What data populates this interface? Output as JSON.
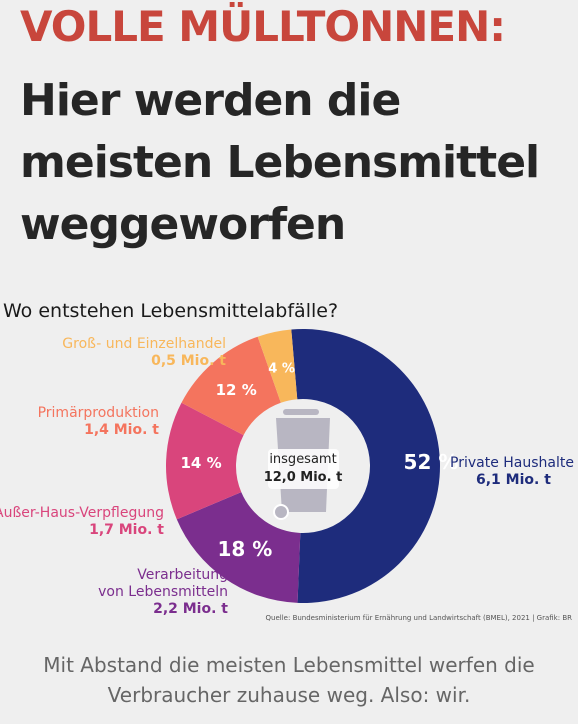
{
  "headline": "VOLLE MÜLLTONNEN:",
  "title_lines": [
    "Hier werden die",
    "meisten Lebensmittel",
    "weggeworfen"
  ],
  "chart_data": {
    "type": "pie",
    "title": "Wo entstehen Lebensmittelabfälle?",
    "center_label": "insgesamt",
    "center_value": "12,0 Mio. t",
    "total": 12.0,
    "unit": "Mio. t",
    "slices": [
      {
        "name_lines": [
          "Private Haushalte"
        ],
        "value": 6.1,
        "value_label": "6,1 Mio. t",
        "percent": 52,
        "percent_label": "52 %",
        "color": "#1e2c7c"
      },
      {
        "name_lines": [
          "Verarbeitung",
          "von Lebensmitteln"
        ],
        "value": 2.2,
        "value_label": "2,2 Mio. t",
        "percent": 18,
        "percent_label": "18 %",
        "color": "#7b2e8e"
      },
      {
        "name_lines": [
          "Außer-Haus-Verpflegung"
        ],
        "value": 1.7,
        "value_label": "1,7 Mio. t",
        "percent": 14,
        "percent_label": "14 %",
        "color": "#d9457c"
      },
      {
        "name_lines": [
          "Primärproduktion"
        ],
        "value": 1.4,
        "value_label": "1,4 Mio. t",
        "percent": 12,
        "percent_label": "12 %",
        "color": "#f4745e"
      },
      {
        "name_lines": [
          "Groß- und Einzelhandel"
        ],
        "value": 0.5,
        "value_label": "0,5 Mio. t",
        "percent": 4,
        "percent_label": "4 %",
        "color": "#f8b75b"
      }
    ]
  },
  "source": "Quelle: Bundesministerium für Ernährung und Landwirtschaft (BMEL), 2021 | Grafik: BR",
  "footer_lines": [
    "Mit Abstand die meisten Lebensmittel werfen die",
    "Verbraucher zuhause weg. Also: wir."
  ],
  "colors": {
    "headline": "#c8463c",
    "title": "#262626",
    "bin": "#b8b6c2",
    "background": "#efefef"
  },
  "icon": "trash-bin-icon"
}
